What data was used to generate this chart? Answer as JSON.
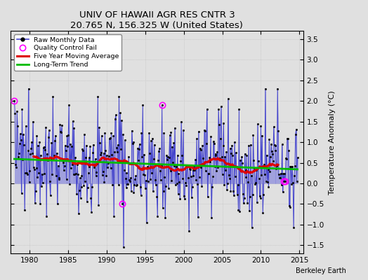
{
  "title": "UNIV OF HAWAII AGR RES CNTR 3",
  "subtitle": "20.765 N, 156.325 W (United States)",
  "ylabel": "Temperature Anomaly (°C)",
  "credit": "Berkeley Earth",
  "xlim": [
    1977.5,
    2015.5
  ],
  "ylim": [
    -1.7,
    3.7
  ],
  "yticks": [
    -1.5,
    -1.0,
    -0.5,
    0.0,
    0.5,
    1.0,
    1.5,
    2.0,
    2.5,
    3.0,
    3.5
  ],
  "xticks": [
    1980,
    1985,
    1990,
    1995,
    2000,
    2005,
    2010,
    2015
  ],
  "raw_color": "#4444cc",
  "stem_color": "#8888dd",
  "ma_color": "#dd0000",
  "trend_color": "#00bb00",
  "qc_color": "#ff00ff",
  "background_color": "#e0e0e0",
  "legend_bg": "#ffffff",
  "dot_color": "#000000"
}
